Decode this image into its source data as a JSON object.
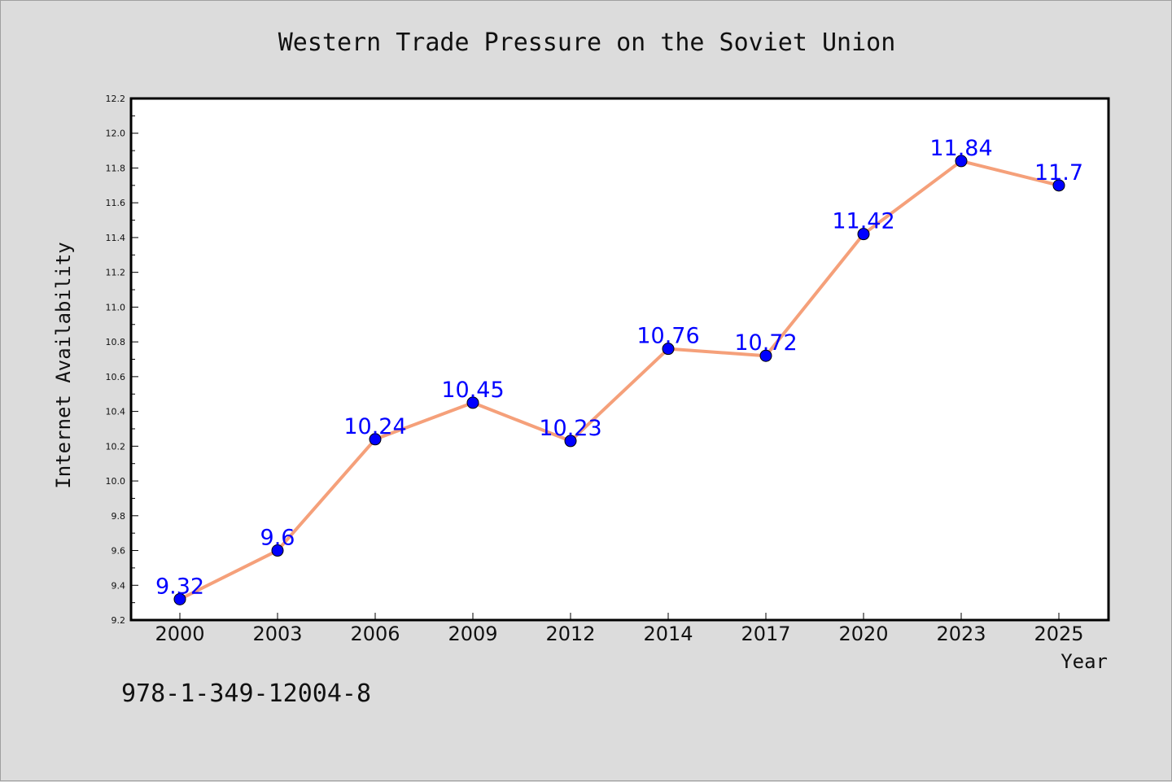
{
  "chart_data": {
    "type": "line",
    "title": "Western Trade Pressure on the Soviet Union",
    "xlabel": "Year",
    "ylabel": "Internet Availability",
    "categories": [
      "2000",
      "2003",
      "2006",
      "2009",
      "2012",
      "2014",
      "2017",
      "2020",
      "2023",
      "2025"
    ],
    "values": [
      9.32,
      9.6,
      10.24,
      10.45,
      10.23,
      10.76,
      10.72,
      11.42,
      11.84,
      11.7
    ],
    "data_labels": [
      "9.32",
      "9.6",
      "10.24",
      "10.45",
      "10.23",
      "10.76",
      "10.72",
      "11.42",
      "11.84",
      "11.7"
    ],
    "ylim": [
      9.2,
      12.2
    ],
    "yticks": [
      "9.2",
      "9.4",
      "9.6",
      "9.8",
      "10.0",
      "10.2",
      "10.4",
      "10.6",
      "10.8",
      "11.0",
      "11.2",
      "11.4",
      "11.6",
      "11.8",
      "12.0",
      "12.2"
    ],
    "grid": false,
    "line_color": "#f5a07a",
    "marker_color": "#0000ff",
    "label_color": "#0000ff"
  },
  "footer": {
    "isbn": "978-1-349-12004-8"
  },
  "colors": {
    "background": "#dcdcdc",
    "plot_background": "#ffffff"
  }
}
